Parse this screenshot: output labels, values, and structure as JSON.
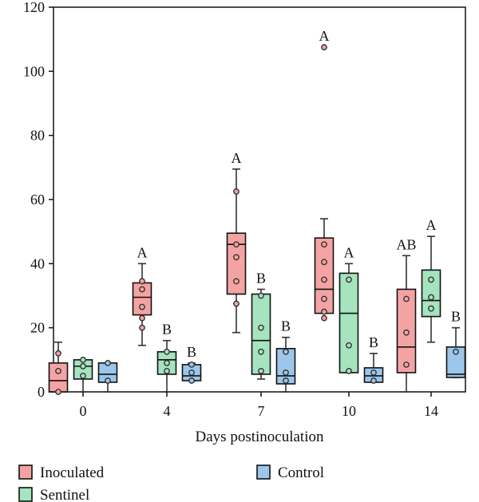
{
  "chart_data": {
    "type": "box",
    "xlabel": "Days postinoculation",
    "ylabel": "",
    "ylim": [
      0,
      120
    ],
    "yticks": [
      0,
      20,
      40,
      60,
      80,
      100,
      120
    ],
    "categories": [
      "0",
      "4",
      "7",
      "10",
      "14"
    ],
    "grid": false,
    "legend_position": "bottom",
    "series": [
      {
        "name": "Inoculated",
        "color": "#f4a3a3",
        "boxes": [
          {
            "day": "0",
            "whisker_low": 0,
            "q1": 0,
            "median": 3.5,
            "q3": 9,
            "whisker_high": 15.5,
            "points": [
              0,
              6.5,
              12
            ],
            "letter": ""
          },
          {
            "day": "4",
            "whisker_low": 14.5,
            "q1": 24,
            "median": 29.5,
            "q3": 34,
            "whisker_high": 40,
            "points": [
              20,
              23,
              26.5,
              32,
              34.5
            ],
            "letter": "A"
          },
          {
            "day": "7",
            "whisker_low": 18.5,
            "q1": 30.5,
            "median": 46,
            "q3": 49.5,
            "whisker_high": 69.5,
            "points": [
              27.5,
              34.5,
              42,
              46,
              62.5
            ],
            "letter": "A"
          },
          {
            "day": "10",
            "whisker_low": 24.5,
            "q1": 24.5,
            "median": 32,
            "q3": 48,
            "whisker_high": 54,
            "points": [
              23,
              25,
              29,
              35,
              40.5,
              46,
              107.5
            ],
            "letter": "A"
          },
          {
            "day": "14",
            "whisker_low": 0,
            "q1": 6,
            "median": 14,
            "q3": 32,
            "whisker_high": 42.5,
            "points": [
              8.5,
              18.5,
              29
            ],
            "letter": "AB"
          }
        ]
      },
      {
        "name": "Sentinel",
        "color": "#a6e3bf",
        "boxes": [
          {
            "day": "0",
            "whisker_low": 0,
            "q1": 4,
            "median": 8,
            "q3": 10,
            "whisker_high": 10,
            "points": [
              5,
              8,
              10
            ],
            "letter": ""
          },
          {
            "day": "4",
            "whisker_low": 0,
            "q1": 5.5,
            "median": 10,
            "q3": 12.5,
            "whisker_high": 16,
            "points": [
              6.5,
              9,
              12.5
            ],
            "letter": "B"
          },
          {
            "day": "7",
            "whisker_low": 4,
            "q1": 5.5,
            "median": 16,
            "q3": 30.5,
            "whisker_high": 32,
            "points": [
              6.5,
              12.5,
              20,
              30
            ],
            "letter": "B"
          },
          {
            "day": "10",
            "whisker_low": 6,
            "q1": 6,
            "median": 24.5,
            "q3": 37,
            "whisker_high": 40,
            "points": [
              6.5,
              14.5,
              35
            ],
            "letter": "A"
          },
          {
            "day": "14",
            "whisker_low": 15.5,
            "q1": 23.5,
            "median": 28.5,
            "q3": 38,
            "whisker_high": 48.5,
            "points": [
              26,
              29.5,
              35
            ],
            "letter": "A"
          }
        ]
      },
      {
        "name": "Control",
        "color": "#9cc6ea",
        "boxes": [
          {
            "day": "0",
            "whisker_low": 0,
            "q1": 3,
            "median": 5.5,
            "q3": 9,
            "whisker_high": 9,
            "points": [
              3.5,
              9
            ],
            "letter": ""
          },
          {
            "day": "4",
            "whisker_low": 3.5,
            "q1": 3.5,
            "median": 5,
            "q3": 8.5,
            "whisker_high": 9,
            "points": [
              3.5,
              6,
              8.5
            ],
            "letter": "B"
          },
          {
            "day": "7",
            "whisker_low": 0,
            "q1": 2.5,
            "median": 5,
            "q3": 13.5,
            "whisker_high": 17,
            "points": [
              3.5,
              6,
              12.5
            ],
            "letter": "B"
          },
          {
            "day": "10",
            "whisker_low": 3,
            "q1": 3,
            "median": 5,
            "q3": 7.5,
            "whisker_high": 12,
            "points": [
              3.5,
              6
            ],
            "letter": "B"
          },
          {
            "day": "14",
            "whisker_low": 4.5,
            "q1": 4.5,
            "median": 5.5,
            "q3": 14,
            "whisker_high": 20,
            "points": [
              12.5
            ],
            "letter": "B"
          }
        ]
      }
    ]
  }
}
